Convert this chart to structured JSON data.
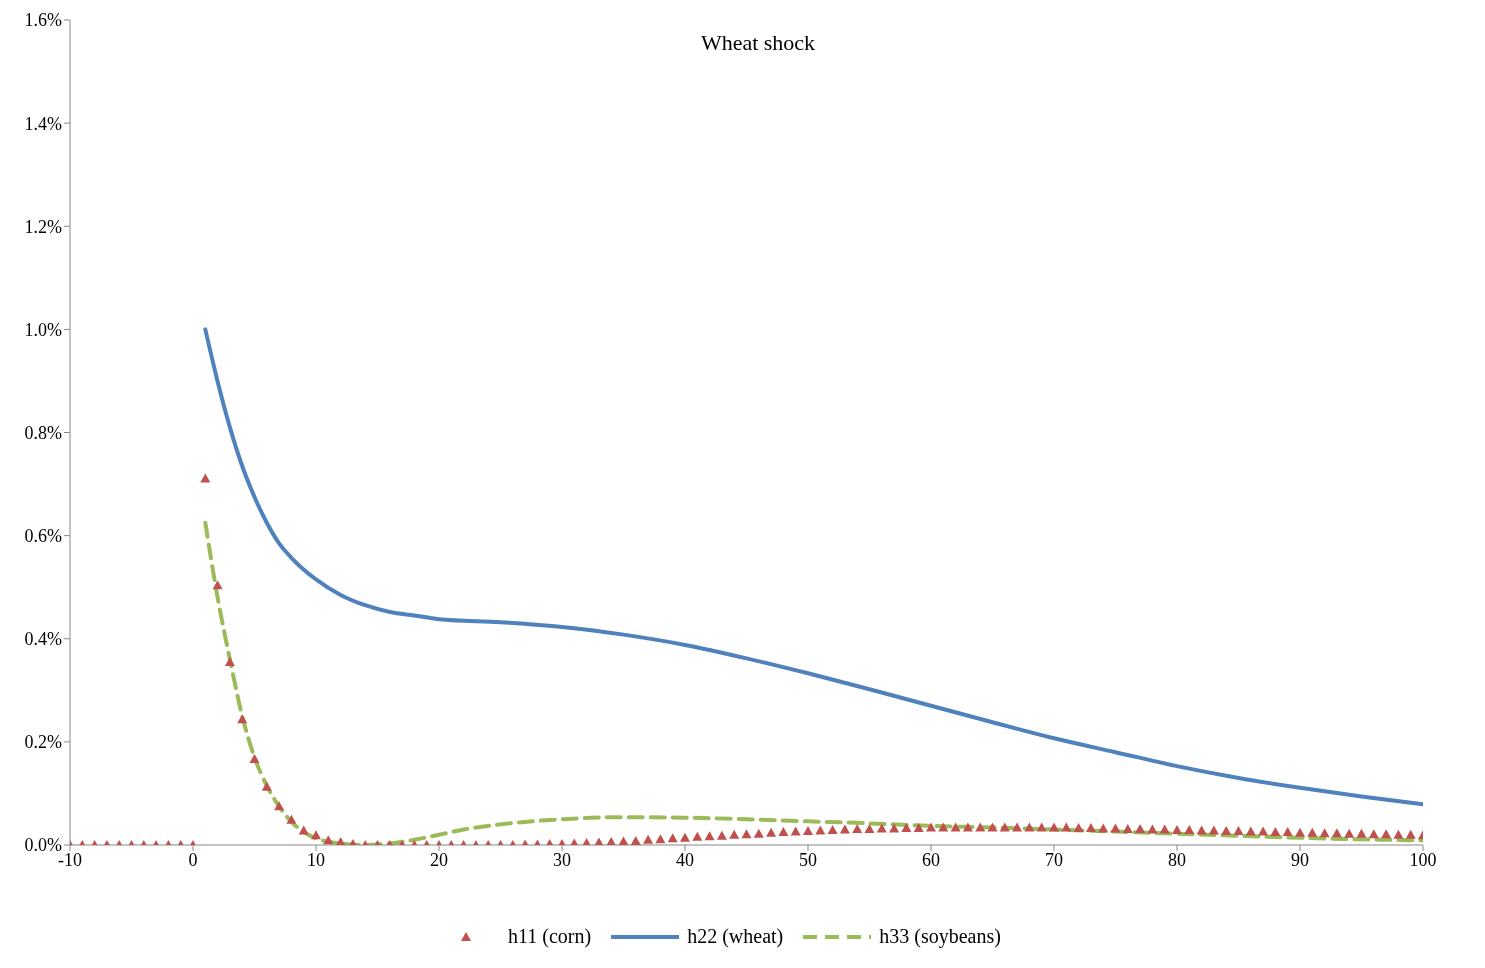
{
  "chart_data": {
    "type": "line",
    "title": "Wheat shock",
    "xlim": [
      -10,
      100
    ],
    "xticks": [
      -10,
      0,
      10,
      20,
      30,
      40,
      50,
      60,
      70,
      80,
      90,
      100
    ],
    "ylim": [
      0,
      1.6
    ],
    "yticks": [
      {
        "value": 0,
        "label": "0.0%"
      },
      {
        "value": 0.2,
        "label": "0.2%"
      },
      {
        "value": 0.4,
        "label": "0.4%"
      },
      {
        "value": 0.6,
        "label": "0.6%"
      },
      {
        "value": 0.8,
        "label": "0.8%"
      },
      {
        "value": 1.0,
        "label": "1.0%"
      },
      {
        "value": 1.2,
        "label": "1.2%"
      },
      {
        "value": 1.4,
        "label": "1.4%"
      },
      {
        "value": 1.6,
        "label": "1.6%"
      }
    ],
    "grid": false,
    "legend": "bottom",
    "series": [
      {
        "name": "h11 (corn)",
        "type": "scatter",
        "marker": "triangle",
        "color": "#c0504d",
        "x": [
          -10,
          -9,
          -8,
          -7,
          -6,
          -5,
          -4,
          -3,
          -2,
          -1,
          0,
          1,
          2,
          3,
          4,
          5,
          6,
          7,
          8,
          9,
          10,
          11,
          12,
          13,
          14,
          15,
          16,
          17,
          18,
          19,
          20,
          21,
          22,
          23,
          24,
          25,
          26,
          27,
          28,
          29,
          30,
          31,
          32,
          33,
          34,
          35,
          36,
          37,
          38,
          39,
          40,
          41,
          42,
          43,
          44,
          45,
          46,
          47,
          48,
          49,
          50,
          51,
          52,
          53,
          54,
          55,
          56,
          57,
          58,
          59,
          60,
          61,
          62,
          63,
          64,
          65,
          66,
          67,
          68,
          69,
          70,
          71,
          72,
          73,
          74,
          75,
          76,
          77,
          78,
          79,
          80,
          81,
          82,
          83,
          84,
          85,
          86,
          87,
          88,
          89,
          90,
          91,
          92,
          93,
          94,
          95,
          96,
          97,
          98,
          99,
          100
        ],
        "values": [
          0,
          0,
          0,
          0,
          0,
          0,
          0,
          0,
          0,
          0,
          0,
          0.711,
          0.504,
          0.355,
          0.244,
          0.167,
          0.113,
          0.075,
          0.049,
          0.028,
          0.019,
          0.009,
          0.006,
          0.002,
          0,
          0,
          0,
          0,
          0,
          0,
          0,
          0,
          0,
          0,
          0,
          0,
          0,
          0.001,
          0.001,
          0.002,
          0.002,
          0.003,
          0.004,
          0.005,
          0.006,
          0.007,
          0.008,
          0.01,
          0.011,
          0.013,
          0.014,
          0.016,
          0.017,
          0.018,
          0.02,
          0.021,
          0.022,
          0.024,
          0.025,
          0.026,
          0.027,
          0.028,
          0.029,
          0.03,
          0.031,
          0.031,
          0.032,
          0.032,
          0.033,
          0.033,
          0.034,
          0.034,
          0.034,
          0.034,
          0.034,
          0.034,
          0.034,
          0.034,
          0.034,
          0.034,
          0.034,
          0.034,
          0.033,
          0.033,
          0.032,
          0.032,
          0.031,
          0.031,
          0.03,
          0.03,
          0.029,
          0.029,
          0.028,
          0.028,
          0.027,
          0.027,
          0.026,
          0.026,
          0.025,
          0.025,
          0.024,
          0.024,
          0.023,
          0.023,
          0.022,
          0.022,
          0.021,
          0.021,
          0.02,
          0.02,
          0.019
        ]
      },
      {
        "name": "h22 (wheat)",
        "type": "line",
        "line_style": "solid",
        "marker": "none",
        "color": "#4f81bd",
        "x": [
          1,
          2,
          3,
          4,
          5,
          6,
          7,
          8,
          10,
          12,
          14,
          16,
          18,
          20,
          25,
          30,
          35,
          40,
          45,
          50,
          55,
          60,
          65,
          70,
          75,
          80,
          85,
          90,
          95,
          100
        ],
        "values": [
          1.0,
          0.899,
          0.81,
          0.735,
          0.675,
          0.625,
          0.585,
          0.557,
          0.515,
          0.485,
          0.465,
          0.452,
          0.445,
          0.438,
          0.432,
          0.423,
          0.408,
          0.388,
          0.362,
          0.333,
          0.302,
          0.27,
          0.238,
          0.207,
          0.18,
          0.153,
          0.13,
          0.111,
          0.094,
          0.079
        ]
      },
      {
        "name": "h33 (soybeans)",
        "type": "line",
        "line_style": "dashed",
        "marker": "none",
        "color": "#9bbb59",
        "x": [
          1,
          2,
          3,
          4,
          5,
          6,
          7,
          8,
          9,
          10,
          12,
          14,
          16,
          18,
          20,
          22,
          25,
          30,
          35,
          40,
          45,
          50,
          55,
          60,
          65,
          70,
          75,
          80,
          85,
          90,
          95,
          100
        ],
        "values": [
          0.625,
          0.48,
          0.36,
          0.25,
          0.17,
          0.115,
          0.075,
          0.045,
          0.025,
          0.013,
          0.003,
          0,
          0.003,
          0.01,
          0.02,
          0.03,
          0.04,
          0.05,
          0.054,
          0.053,
          0.05,
          0.046,
          0.042,
          0.037,
          0.034,
          0.03,
          0.026,
          0.022,
          0.018,
          0.014,
          0.011,
          0.009
        ]
      }
    ]
  }
}
